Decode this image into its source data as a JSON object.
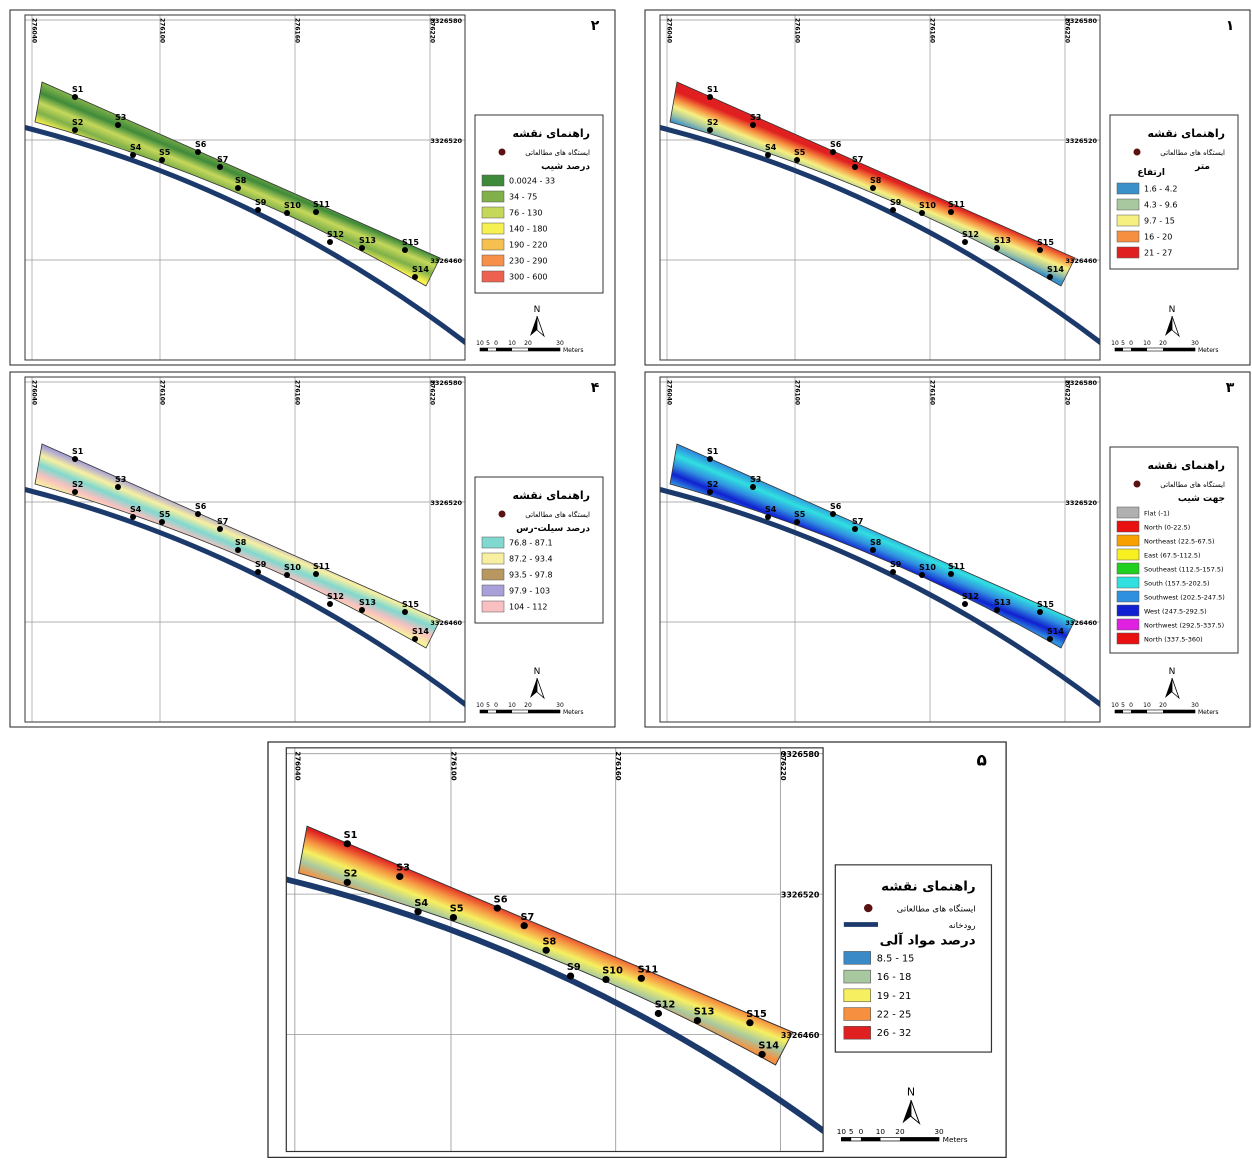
{
  "legend_title": "راهنمای نقشه",
  "station_label": "ایستگاه های مطالعاتی",
  "x_grid_labels": [
    276040,
    276100,
    276160,
    276220
  ],
  "y_grid_labels": [
    3326580,
    3326520,
    3326460
  ],
  "stations": [
    "S1",
    "S2",
    "S3",
    "S4",
    "S5",
    "S6",
    "S7",
    "S8",
    "S9",
    "S10",
    "S11",
    "S12",
    "S13",
    "S14",
    "S15"
  ],
  "north": "N",
  "scale_bar": {
    "labels": [
      10,
      5,
      0,
      10,
      20,
      30
    ],
    "unit": "Meters"
  },
  "panels": [
    {
      "number": "۲",
      "legend": {
        "heading": "درصد شیب",
        "classes": [
          {
            "label": "0.0024 - 33",
            "color": "#3f8a3a"
          },
          {
            "label": "34 - 75",
            "color": "#7fb04a"
          },
          {
            "label": "76 - 130",
            "color": "#c6d85a"
          },
          {
            "label": "140 - 180",
            "color": "#f6f050"
          },
          {
            "label": "190 - 220",
            "color": "#f6c050"
          },
          {
            "label": "230 - 290",
            "color": "#f69048"
          },
          {
            "label": "300 - 600",
            "color": "#ee6050"
          }
        ]
      }
    },
    {
      "number": "۱",
      "legend": {
        "heading": "ارتفاع",
        "unit": "متر",
        "classes": [
          {
            "label": "1.6 - 4.2",
            "color": "#3a90c8"
          },
          {
            "label": "4.3 - 9.6",
            "color": "#a8c8a0"
          },
          {
            "label": "9.7 - 15",
            "color": "#f6f080"
          },
          {
            "label": "16 - 20",
            "color": "#f69040"
          },
          {
            "label": "21 - 27",
            "color": "#e02020"
          }
        ]
      }
    },
    {
      "number": "۴",
      "legend": {
        "heading": "درصد سیلت-رس",
        "classes": [
          {
            "label": "76.8 - 87.1",
            "color": "#80d8d0"
          },
          {
            "label": "87.2 - 93.4",
            "color": "#f8f0a0"
          },
          {
            "label": "93.5 - 97.8",
            "color": "#b89860"
          },
          {
            "label": "97.9 - 103",
            "color": "#a8a0d8"
          },
          {
            "label": "104 - 112",
            "color": "#f8c0c0"
          }
        ]
      }
    },
    {
      "number": "۳",
      "legend": {
        "heading": "جهت شیب",
        "classes": [
          {
            "label": "Flat (-1)",
            "color": "#b0b0b0"
          },
          {
            "label": "North (0-22.5)",
            "color": "#e81010"
          },
          {
            "label": "Northeast (22.5-67.5)",
            "color": "#f8a000"
          },
          {
            "label": "East (67.5-112.5)",
            "color": "#f8f020"
          },
          {
            "label": "Southeast (112.5-157.5)",
            "color": "#20d020"
          },
          {
            "label": "South (157.5-202.5)",
            "color": "#30e0e0"
          },
          {
            "label": "Southwest (202.5-247.5)",
            "color": "#3090e0"
          },
          {
            "label": "West (247.5-292.5)",
            "color": "#1020d0"
          },
          {
            "label": "Northwest (292.5-337.5)",
            "color": "#e020e0"
          },
          {
            "label": "North (337.5-360)",
            "color": "#e81010"
          }
        ]
      }
    },
    {
      "number": "۵",
      "legend": {
        "river_label": "رودخانه",
        "heading": "درصد مواد آلی",
        "classes": [
          {
            "label": "8.5 - 15",
            "color": "#3a8ac8"
          },
          {
            "label": "16 - 18",
            "color": "#a8c8a0"
          },
          {
            "label": "19 - 21",
            "color": "#f6f060"
          },
          {
            "label": "22 - 25",
            "color": "#f69040"
          },
          {
            "label": "26 - 32",
            "color": "#e02020"
          }
        ]
      }
    }
  ]
}
